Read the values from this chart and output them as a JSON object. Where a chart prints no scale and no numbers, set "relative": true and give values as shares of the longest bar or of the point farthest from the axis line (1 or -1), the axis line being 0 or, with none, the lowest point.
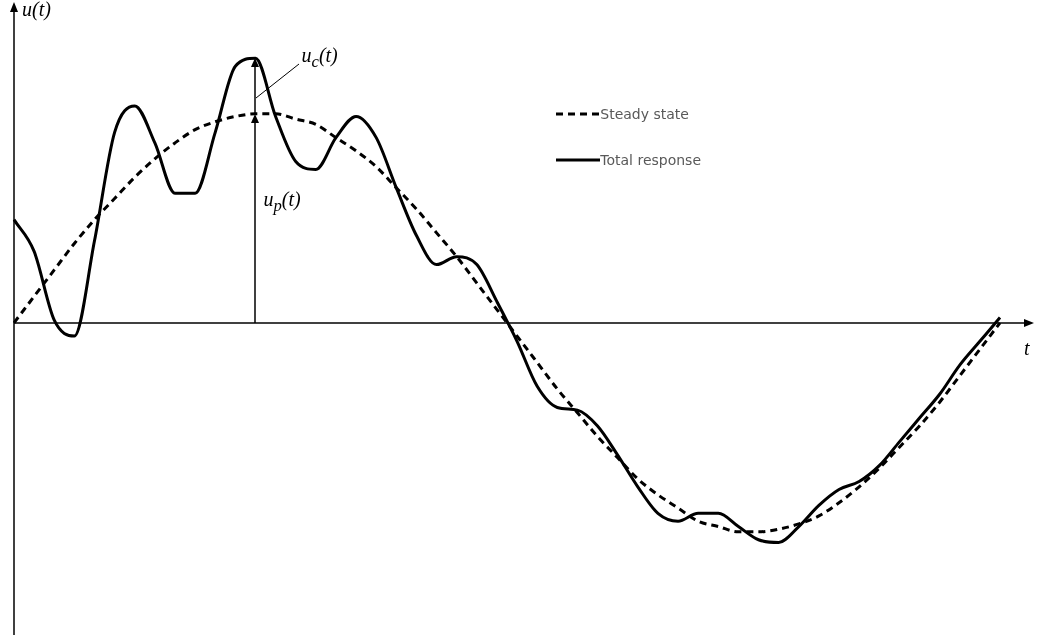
{
  "chart_data": {
    "type": "line",
    "relative": true,
    "xlabel": "t",
    "ylabel": "u(t)",
    "legend": "top right",
    "marker": "none",
    "annotations": [
      "u$_{c}$(t)",
      "u$_{p}$(t)"
    ],
    "categories": [
      null,
      null,
      null,
      null,
      null,
      null,
      null,
      null,
      null,
      null,
      null,
      null,
      null,
      null,
      null,
      null,
      null,
      null,
      null,
      null,
      null,
      null,
      null,
      null,
      null,
      null,
      null,
      null,
      null,
      null,
      null,
      null,
      null,
      null,
      null,
      null,
      null,
      null,
      null,
      null,
      null,
      null,
      null,
      null,
      null,
      null,
      null,
      null,
      null,
      null
    ],
    "series": [
      {
        "name": "Steady state",
        "color": "#000000",
        "line_style": "dashed",
        "values": [
          0,
          0.1,
          0.2,
          0.3,
          0.39,
          0.47,
          0.55,
          0.62,
          0.68,
          0.73,
          0.76,
          0.78,
          0.79,
          0.79,
          0.77,
          0.75,
          0.7,
          0.65,
          0.59,
          0.51,
          0.43,
          0.34,
          0.25,
          0.15,
          0.05,
          -0.05,
          -0.15,
          -0.25,
          -0.34,
          -0.43,
          -0.51,
          -0.59,
          -0.65,
          -0.7,
          -0.75,
          -0.77,
          -0.79,
          -0.79,
          -0.78,
          -0.76,
          -0.73,
          -0.68,
          -0.62,
          -0.55,
          -0.47,
          -0.39,
          -0.3,
          -0.2,
          -0.1,
          0
        ]
      },
      {
        "name": "Total response",
        "color": "#000000",
        "line_style": "solid",
        "values": [
          0.39,
          0.27,
          0.01,
          -0.05,
          0.31,
          0.72,
          0.82,
          0.68,
          0.49,
          0.49,
          0.72,
          0.97,
          1.0,
          0.78,
          0.61,
          0.58,
          0.7,
          0.78,
          0.7,
          0.51,
          0.33,
          0.22,
          0.25,
          0.22,
          0.08,
          -0.07,
          -0.24,
          -0.32,
          -0.33,
          -0.39,
          -0.5,
          -0.62,
          -0.72,
          -0.75,
          -0.72,
          -0.72,
          -0.77,
          -0.82,
          -0.83,
          -0.77,
          -0.69,
          -0.63,
          -0.6,
          -0.54,
          -0.45,
          -0.36,
          -0.27,
          -0.16,
          -0.07,
          0.02
        ]
      }
    ]
  }
}
